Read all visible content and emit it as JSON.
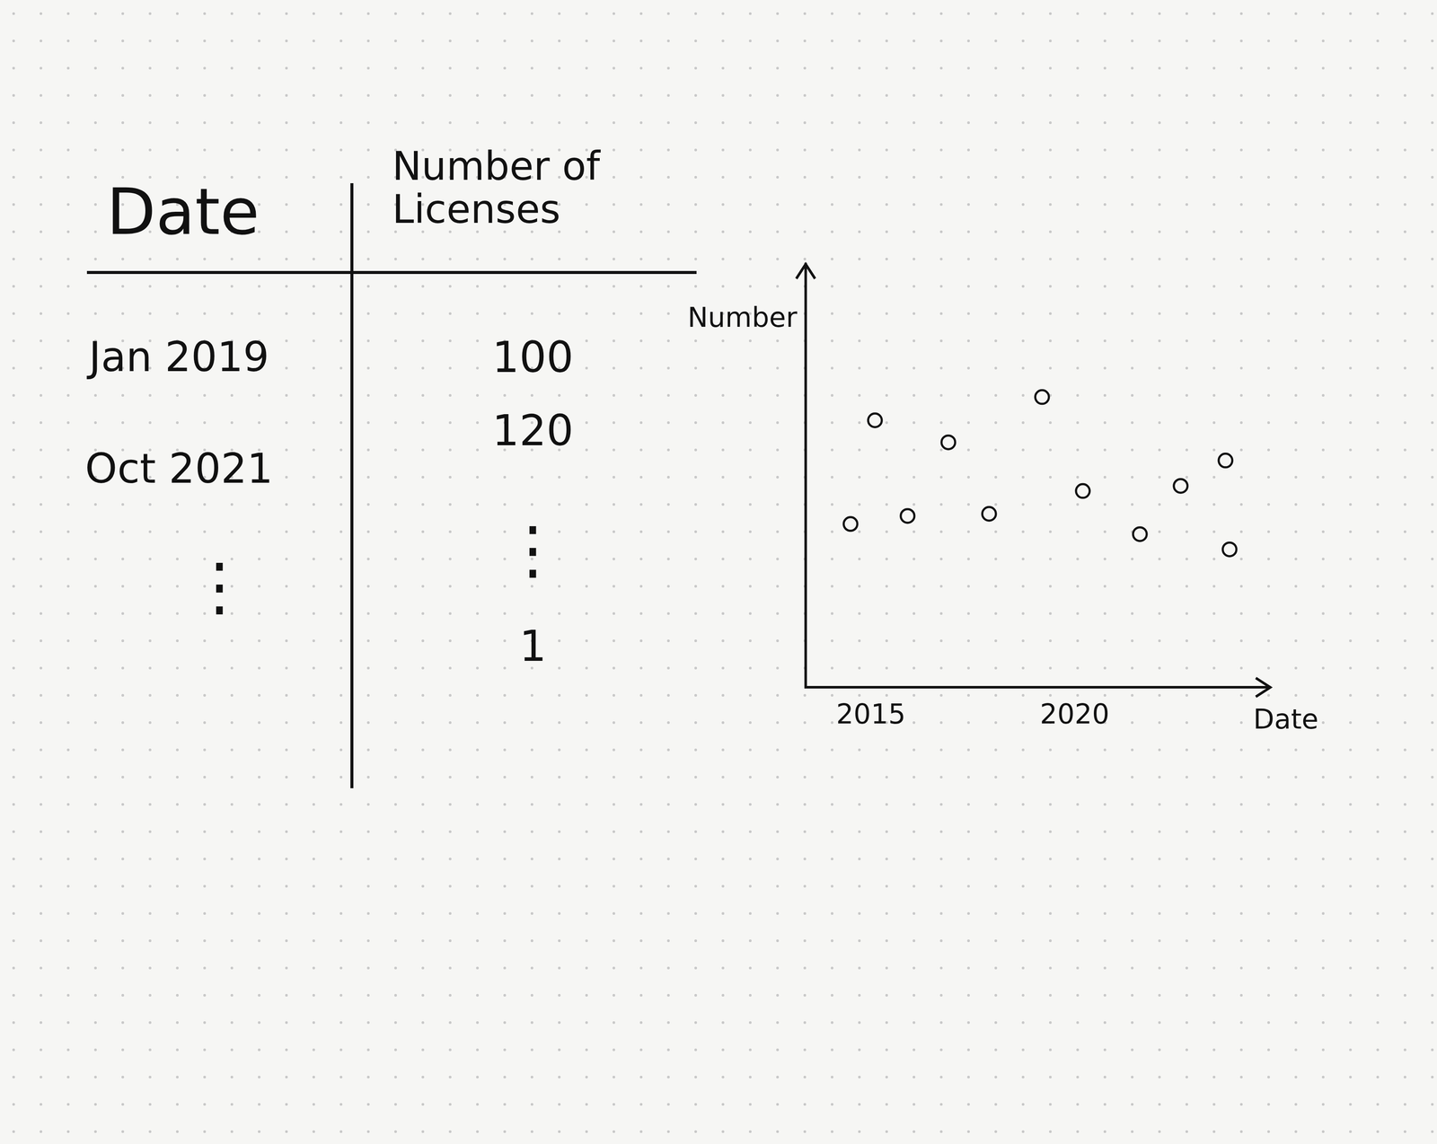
{
  "table": {
    "header": [
      "Date",
      "Number of Licenses"
    ],
    "rows": [
      [
        "Jan 2019",
        "100"
      ],
      [
        "Oct 2021",
        "120"
      ],
      [
        "⋮",
        "⋮"
      ],
      [
        null,
        "1"
      ]
    ]
  },
  "chart_data": {
    "type": "scatter",
    "x_label": "Date",
    "y_label": "Number",
    "x": [
      2015.1,
      2014.5,
      2015.9,
      2016.9,
      2017.9,
      2019.2,
      2020.2,
      2021.6,
      2022.6,
      2023.7,
      2023.8
    ],
    "values": [
      63.1,
      38.6,
      40.5,
      57.9,
      41.0,
      68.6,
      46.4,
      36.2,
      47.6,
      53.6,
      32.6
    ],
    "xlim": [
      2013.4,
      2024.8
    ],
    "xticks": [
      2015,
      2020
    ],
    "ylim": [
      0,
      100
    ],
    "tick_labels": "x",
    "grid": false,
    "color": "#111111",
    "marker": "circle"
  }
}
